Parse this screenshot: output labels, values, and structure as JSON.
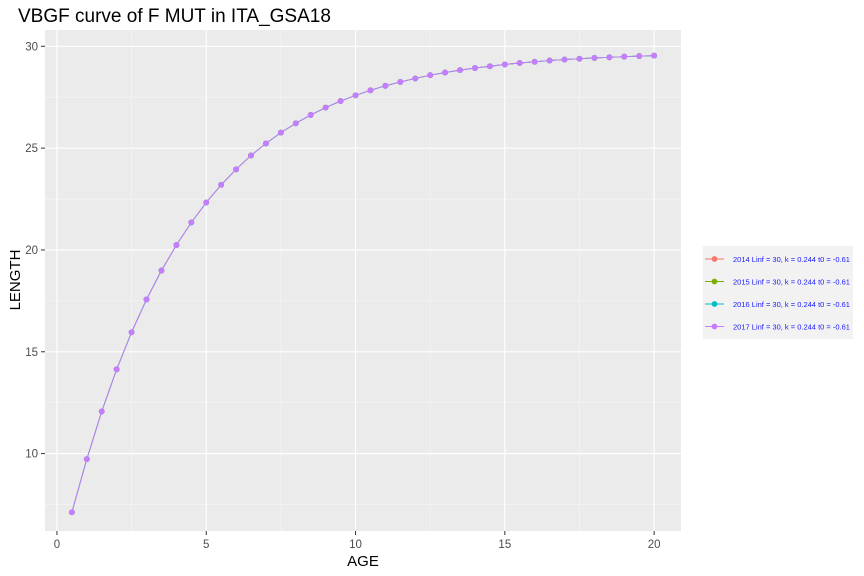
{
  "chart_data": {
    "type": "line",
    "title": "VBGF curve of F MUT in ITA_GSA18",
    "xlabel": "AGE",
    "ylabel": "LENGTH",
    "xlim": [
      -0.4,
      20.9
    ],
    "ylim": [
      6.2,
      30.8
    ],
    "xticks": [
      0,
      5,
      10,
      15,
      20
    ],
    "yticks": [
      10,
      15,
      20,
      25,
      30
    ],
    "grid": true,
    "legend_position": "right",
    "x": [
      0.5,
      1,
      1.5,
      2,
      2.5,
      3,
      3.5,
      4,
      4.5,
      5,
      5.5,
      6,
      6.5,
      7,
      7.5,
      8,
      8.5,
      9,
      9.5,
      10,
      10.5,
      11,
      11.5,
      12,
      12.5,
      13,
      13.5,
      14,
      14.5,
      15,
      15.5,
      16,
      16.5,
      17,
      17.5,
      18,
      18.5,
      19,
      19.5,
      20
    ],
    "series": [
      {
        "name": "2014 Linf = 30, k = 0.244 t0 = -0.61",
        "color": "#F8766D",
        "values": [
          7.12,
          9.73,
          12.07,
          14.14,
          15.96,
          17.57,
          18.99,
          20.24,
          21.35,
          22.33,
          23.2,
          23.96,
          24.64,
          25.23,
          25.76,
          26.22,
          26.63,
          26.99,
          27.31,
          27.59,
          27.84,
          28.06,
          28.25,
          28.42,
          28.58,
          28.71,
          28.83,
          28.93,
          29.02,
          29.11,
          29.18,
          29.24,
          29.3,
          29.35,
          29.39,
          29.43,
          29.46,
          29.49,
          29.52,
          29.54
        ]
      },
      {
        "name": "2015 Linf = 30, k = 0.244 t0 = -0.61",
        "color": "#7CAE00",
        "values": [
          7.12,
          9.73,
          12.07,
          14.14,
          15.96,
          17.57,
          18.99,
          20.24,
          21.35,
          22.33,
          23.2,
          23.96,
          24.64,
          25.23,
          25.76,
          26.22,
          26.63,
          26.99,
          27.31,
          27.59,
          27.84,
          28.06,
          28.25,
          28.42,
          28.58,
          28.71,
          28.83,
          28.93,
          29.02,
          29.11,
          29.18,
          29.24,
          29.3,
          29.35,
          29.39,
          29.43,
          29.46,
          29.49,
          29.52,
          29.54
        ]
      },
      {
        "name": "2016 Linf = 30, k = 0.244 t0 = -0.61",
        "color": "#00BFC4",
        "values": [
          7.12,
          9.73,
          12.07,
          14.14,
          15.96,
          17.57,
          18.99,
          20.24,
          21.35,
          22.33,
          23.2,
          23.96,
          24.64,
          25.23,
          25.76,
          26.22,
          26.63,
          26.99,
          27.31,
          27.59,
          27.84,
          28.06,
          28.25,
          28.42,
          28.58,
          28.71,
          28.83,
          28.93,
          29.02,
          29.11,
          29.18,
          29.24,
          29.3,
          29.35,
          29.39,
          29.43,
          29.46,
          29.49,
          29.52,
          29.54
        ]
      },
      {
        "name": "2017 Linf = 30, k = 0.244 t0 = -0.61",
        "color": "#C77CFF",
        "values": [
          7.12,
          9.73,
          12.07,
          14.14,
          15.96,
          17.57,
          18.99,
          20.24,
          21.35,
          22.33,
          23.2,
          23.96,
          24.64,
          25.23,
          25.76,
          26.22,
          26.63,
          26.99,
          27.31,
          27.59,
          27.84,
          28.06,
          28.25,
          28.42,
          28.58,
          28.71,
          28.83,
          28.93,
          29.02,
          29.11,
          29.18,
          29.24,
          29.3,
          29.35,
          29.39,
          29.43,
          29.46,
          29.49,
          29.52,
          29.54
        ]
      }
    ]
  }
}
